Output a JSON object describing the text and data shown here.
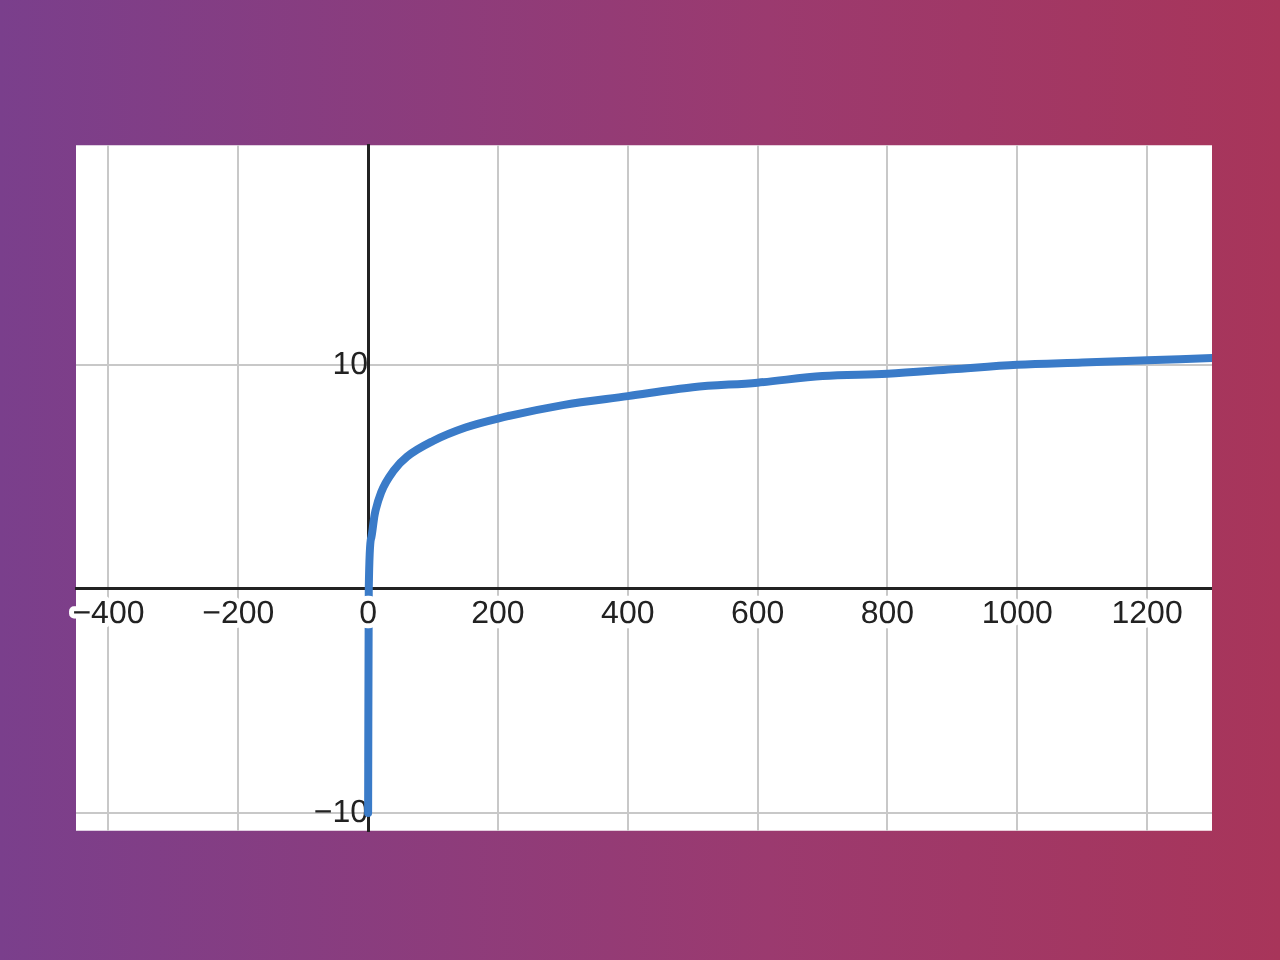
{
  "chart_data": {
    "type": "line",
    "x": [
      0.001,
      1,
      5,
      10,
      20,
      40,
      60,
      100,
      150,
      200,
      300,
      400,
      500,
      600,
      700,
      800,
      900,
      1000,
      1100,
      1200,
      1300
    ],
    "series": [
      {
        "color": "#3a7bc8",
        "values": [
          -10,
          0,
          2.3,
          3.3,
          4.3,
          5.3,
          5.9,
          6.6,
          7.2,
          7.6,
          8.2,
          8.6,
          9.0,
          9.2,
          9.5,
          9.6,
          9.8,
          10,
          10.1,
          10.2,
          10.3
        ]
      }
    ],
    "xlim": [
      -450,
      1300
    ],
    "ylim": [
      -10.8,
      19.8
    ],
    "xticks": [
      {
        "value": -400,
        "label": "−400"
      },
      {
        "value": -200,
        "label": "−200"
      },
      0,
      200,
      400,
      600,
      800,
      1000,
      1200
    ],
    "yticks": [
      {
        "value": -10,
        "label": "−10"
      },
      10
    ],
    "grid": true,
    "legend": false,
    "marker": "none",
    "line_style": "solid"
  }
}
